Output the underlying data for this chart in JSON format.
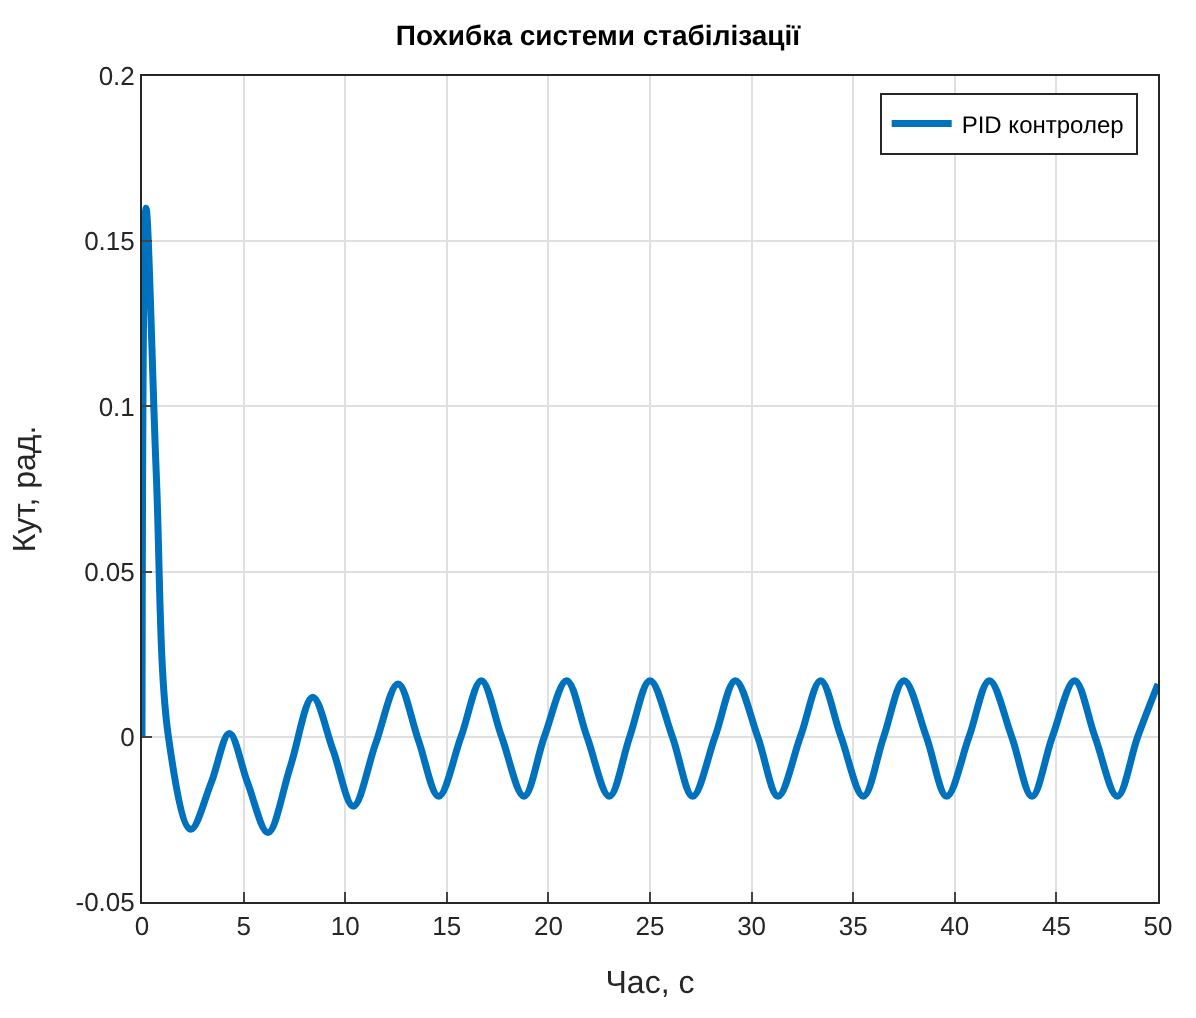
{
  "chart_data": {
    "type": "line",
    "title": "Похибка системи стабілізації",
    "xlabel": "Час, с",
    "ylabel": "Кут, рад.",
    "xlim": [
      0,
      50
    ],
    "xticks": [
      0,
      5,
      10,
      15,
      20,
      25,
      30,
      35,
      40,
      45,
      50
    ],
    "ylim": [
      -0.05,
      0.2
    ],
    "yticks": [
      -0.05,
      0,
      0.05,
      0.1,
      0.15,
      0.2
    ],
    "grid": true,
    "legend": "top right",
    "line_style": "solid",
    "series": [
      {
        "name": "PID контролер",
        "color": "#0072bd",
        "x": [
          0,
          0.2,
          0.7,
          1.3,
          2.4,
          3.4,
          4.3,
          5.2,
          6.2,
          7.3,
          8.4,
          9.4,
          10.4,
          11.5,
          12.6,
          13.6,
          14.6,
          15.7,
          16.7,
          17.7,
          18.8,
          19.8,
          20.9,
          21.9,
          23.0,
          24.0,
          25.0,
          26.1,
          27.1,
          28.2,
          29.2,
          30.3,
          31.3,
          32.4,
          33.4,
          34.4,
          35.5,
          36.5,
          37.5,
          38.6,
          39.6,
          40.7,
          41.7,
          42.8,
          43.8,
          44.8,
          45.9,
          46.9,
          48.0,
          49.0,
          50.0
        ],
        "values": [
          0,
          0.16,
          0.08,
          0,
          -0.028,
          -0.014,
          0.001,
          -0.014,
          -0.029,
          -0.009,
          0.012,
          -0.004,
          -0.021,
          -0.002,
          0.016,
          -0.001,
          -0.018,
          0,
          0.017,
          0,
          -0.018,
          0,
          0.017,
          0,
          -0.018,
          0,
          0.017,
          0,
          -0.018,
          0,
          0.017,
          0,
          -0.018,
          0,
          0.017,
          0,
          -0.018,
          0,
          0.017,
          0,
          -0.018,
          0,
          0.017,
          0,
          -0.018,
          0,
          0.017,
          0,
          -0.018,
          0,
          0.016
        ]
      }
    ]
  }
}
